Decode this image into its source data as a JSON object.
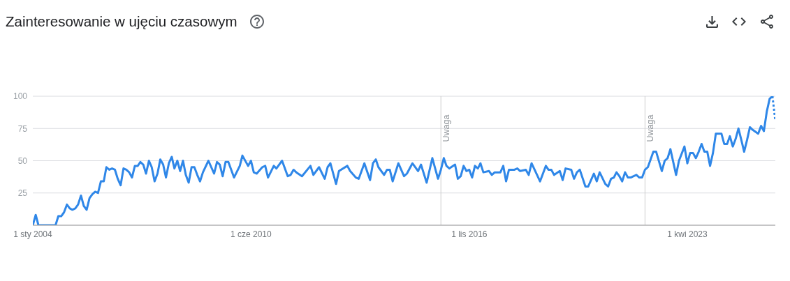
{
  "chart_data": {
    "type": "line",
    "title": "Zainteresowanie w ujęciu czasowym",
    "xlim": [
      "2004-01",
      "2025-11"
    ],
    "xticks": [
      {
        "value": "2004-01-01",
        "label": "1 sty 2004"
      },
      {
        "value": "2010-06-01",
        "label": "1 cze 2010"
      },
      {
        "value": "2016-11-01",
        "label": "1 lis 2016"
      },
      {
        "value": "2023-04-01",
        "label": "1 kwi 2023"
      }
    ],
    "ylim": [
      0,
      100
    ],
    "yticks": [
      25,
      50,
      75,
      100
    ],
    "grid": "y",
    "marker": "none",
    "ref_lines": [
      {
        "axis": "x",
        "value": "2016-01",
        "label": "Uwaga",
        "color": "#cccccc"
      },
      {
        "axis": "x",
        "value": "2022-01",
        "label": "Uwaga",
        "color": "#cccccc"
      }
    ],
    "series": [
      {
        "color": "#2f87e8",
        "line_style": "solid",
        "x": [
          "2004-01",
          "2004-02",
          "2004-03",
          "2004-09",
          "2004-10",
          "2004-11",
          "2004-12",
          "2005-01",
          "2005-02",
          "2005-03",
          "2005-04",
          "2005-05",
          "2005-06",
          "2005-07",
          "2005-08",
          "2005-09",
          "2005-10",
          "2005-11",
          "2005-12",
          "2006-01",
          "2006-02",
          "2006-03",
          "2006-04",
          "2006-05",
          "2006-06",
          "2006-07",
          "2006-08",
          "2006-09",
          "2006-10",
          "2006-11",
          "2006-12",
          "2007-01",
          "2007-02",
          "2007-03",
          "2007-04",
          "2007-05",
          "2007-06",
          "2007-07",
          "2007-08",
          "2007-09",
          "2007-10",
          "2007-11",
          "2007-12",
          "2008-01",
          "2008-02",
          "2008-03",
          "2008-04",
          "2008-05",
          "2008-06",
          "2008-07",
          "2008-08",
          "2008-09",
          "2008-10",
          "2008-11",
          "2008-12",
          "2009-01",
          "2009-03",
          "2009-05",
          "2009-06",
          "2009-07",
          "2009-08",
          "2009-09",
          "2009-10",
          "2009-12",
          "2010-02",
          "2010-03",
          "2010-05",
          "2010-06",
          "2010-07",
          "2010-08",
          "2010-10",
          "2010-11",
          "2010-12",
          "2011-02",
          "2011-03",
          "2011-05",
          "2011-07",
          "2011-08",
          "2011-09",
          "2011-10",
          "2011-12",
          "2012-03",
          "2012-04",
          "2012-06",
          "2012-08",
          "2012-09",
          "2012-10",
          "2012-12",
          "2013-01",
          "2013-04",
          "2013-05",
          "2013-07",
          "2013-08",
          "2013-10",
          "2013-12",
          "2014-01",
          "2014-02",
          "2014-03",
          "2014-05",
          "2014-06",
          "2014-07",
          "2014-08",
          "2014-10",
          "2014-12",
          "2015-01",
          "2015-03",
          "2015-05",
          "2015-06",
          "2015-08",
          "2015-10",
          "2015-12",
          "2016-01",
          "2016-02",
          "2016-03",
          "2016-04",
          "2016-06",
          "2016-07",
          "2016-08",
          "2016-09",
          "2016-10",
          "2016-11",
          "2016-12",
          "2017-01",
          "2017-02",
          "2017-03",
          "2017-04",
          "2017-06",
          "2017-07",
          "2017-08",
          "2017-10",
          "2017-11",
          "2017-12",
          "2018-01",
          "2018-03",
          "2018-04",
          "2018-05",
          "2018-07",
          "2018-08",
          "2018-09",
          "2018-12",
          "2019-02",
          "2019-03",
          "2019-04",
          "2019-05",
          "2019-07",
          "2019-08",
          "2019-09",
          "2019-11",
          "2019-12",
          "2020-01",
          "2020-02",
          "2020-04",
          "2020-05",
          "2020-07",
          "2020-08",
          "2020-09",
          "2020-11",
          "2020-12",
          "2021-01",
          "2021-02",
          "2021-03",
          "2021-04",
          "2021-05",
          "2021-06",
          "2021-07",
          "2021-08",
          "2021-09",
          "2021-10",
          "2021-11",
          "2021-12",
          "2022-01",
          "2022-02",
          "2022-04",
          "2022-05",
          "2022-07",
          "2022-08",
          "2022-09",
          "2022-10",
          "2022-12",
          "2023-01",
          "2023-03",
          "2023-04",
          "2023-05",
          "2023-06",
          "2023-07",
          "2023-08",
          "2023-09",
          "2023-10",
          "2023-11",
          "2023-12",
          "2024-01",
          "2024-02",
          "2024-04",
          "2024-05",
          "2024-06",
          "2024-07",
          "2024-08",
          "2024-09",
          "2024-10",
          "2024-11",
          "2024-12",
          "2025-01",
          "2025-02",
          "2025-03",
          "2025-05",
          "2025-06",
          "2025-07",
          "2025-08",
          "2025-09",
          "2025-10"
        ],
        "values": [
          0,
          8,
          0,
          0,
          7,
          7,
          10,
          16,
          13,
          12,
          13,
          16,
          23,
          15,
          12,
          21,
          24,
          26,
          25,
          34,
          34,
          45,
          43,
          44,
          43,
          36,
          31,
          44,
          43,
          41,
          37,
          46,
          46,
          49,
          47,
          40,
          50,
          45,
          34,
          40,
          51,
          47,
          37,
          48,
          53,
          44,
          50,
          42,
          50,
          39,
          33,
          45,
          45,
          39,
          34,
          41,
          50,
          40,
          49,
          47,
          38,
          49,
          49,
          37,
          46,
          54,
          46,
          50,
          41,
          40,
          45,
          46,
          37,
          46,
          44,
          50,
          38,
          39,
          43,
          41,
          38,
          46,
          39,
          45,
          36,
          45,
          48,
          32,
          42,
          46,
          42,
          37,
          36,
          48,
          35,
          48,
          51,
          45,
          39,
          43,
          43,
          34,
          48,
          38,
          40,
          48,
          42,
          47,
          33,
          52,
          36,
          43,
          52,
          46,
          44,
          47,
          36,
          38,
          46,
          42,
          43,
          37,
          46,
          44,
          48,
          41,
          42,
          39,
          41,
          41,
          46,
          34,
          43,
          43,
          44,
          42,
          43,
          39,
          48,
          34,
          46,
          43,
          43,
          39,
          42,
          35,
          44,
          43,
          36,
          41,
          43,
          30,
          30,
          40,
          34,
          41,
          32,
          30,
          36,
          37,
          41,
          38,
          34,
          41,
          37,
          37,
          38,
          39,
          37,
          37,
          43,
          45,
          57,
          57,
          42,
          50,
          52,
          59,
          39,
          50,
          61,
          48,
          56,
          56,
          52,
          57,
          63,
          57,
          57,
          46,
          56,
          71,
          71,
          63,
          63,
          69,
          61,
          67,
          75,
          66,
          57,
          66,
          76,
          74,
          71,
          77,
          73,
          88,
          98,
          100
        ]
      },
      {
        "color": "#2f87e8",
        "line_style": "dotted",
        "x": [
          "2025-10",
          "2025-11"
        ],
        "values": [
          100,
          81
        ]
      }
    ]
  }
}
